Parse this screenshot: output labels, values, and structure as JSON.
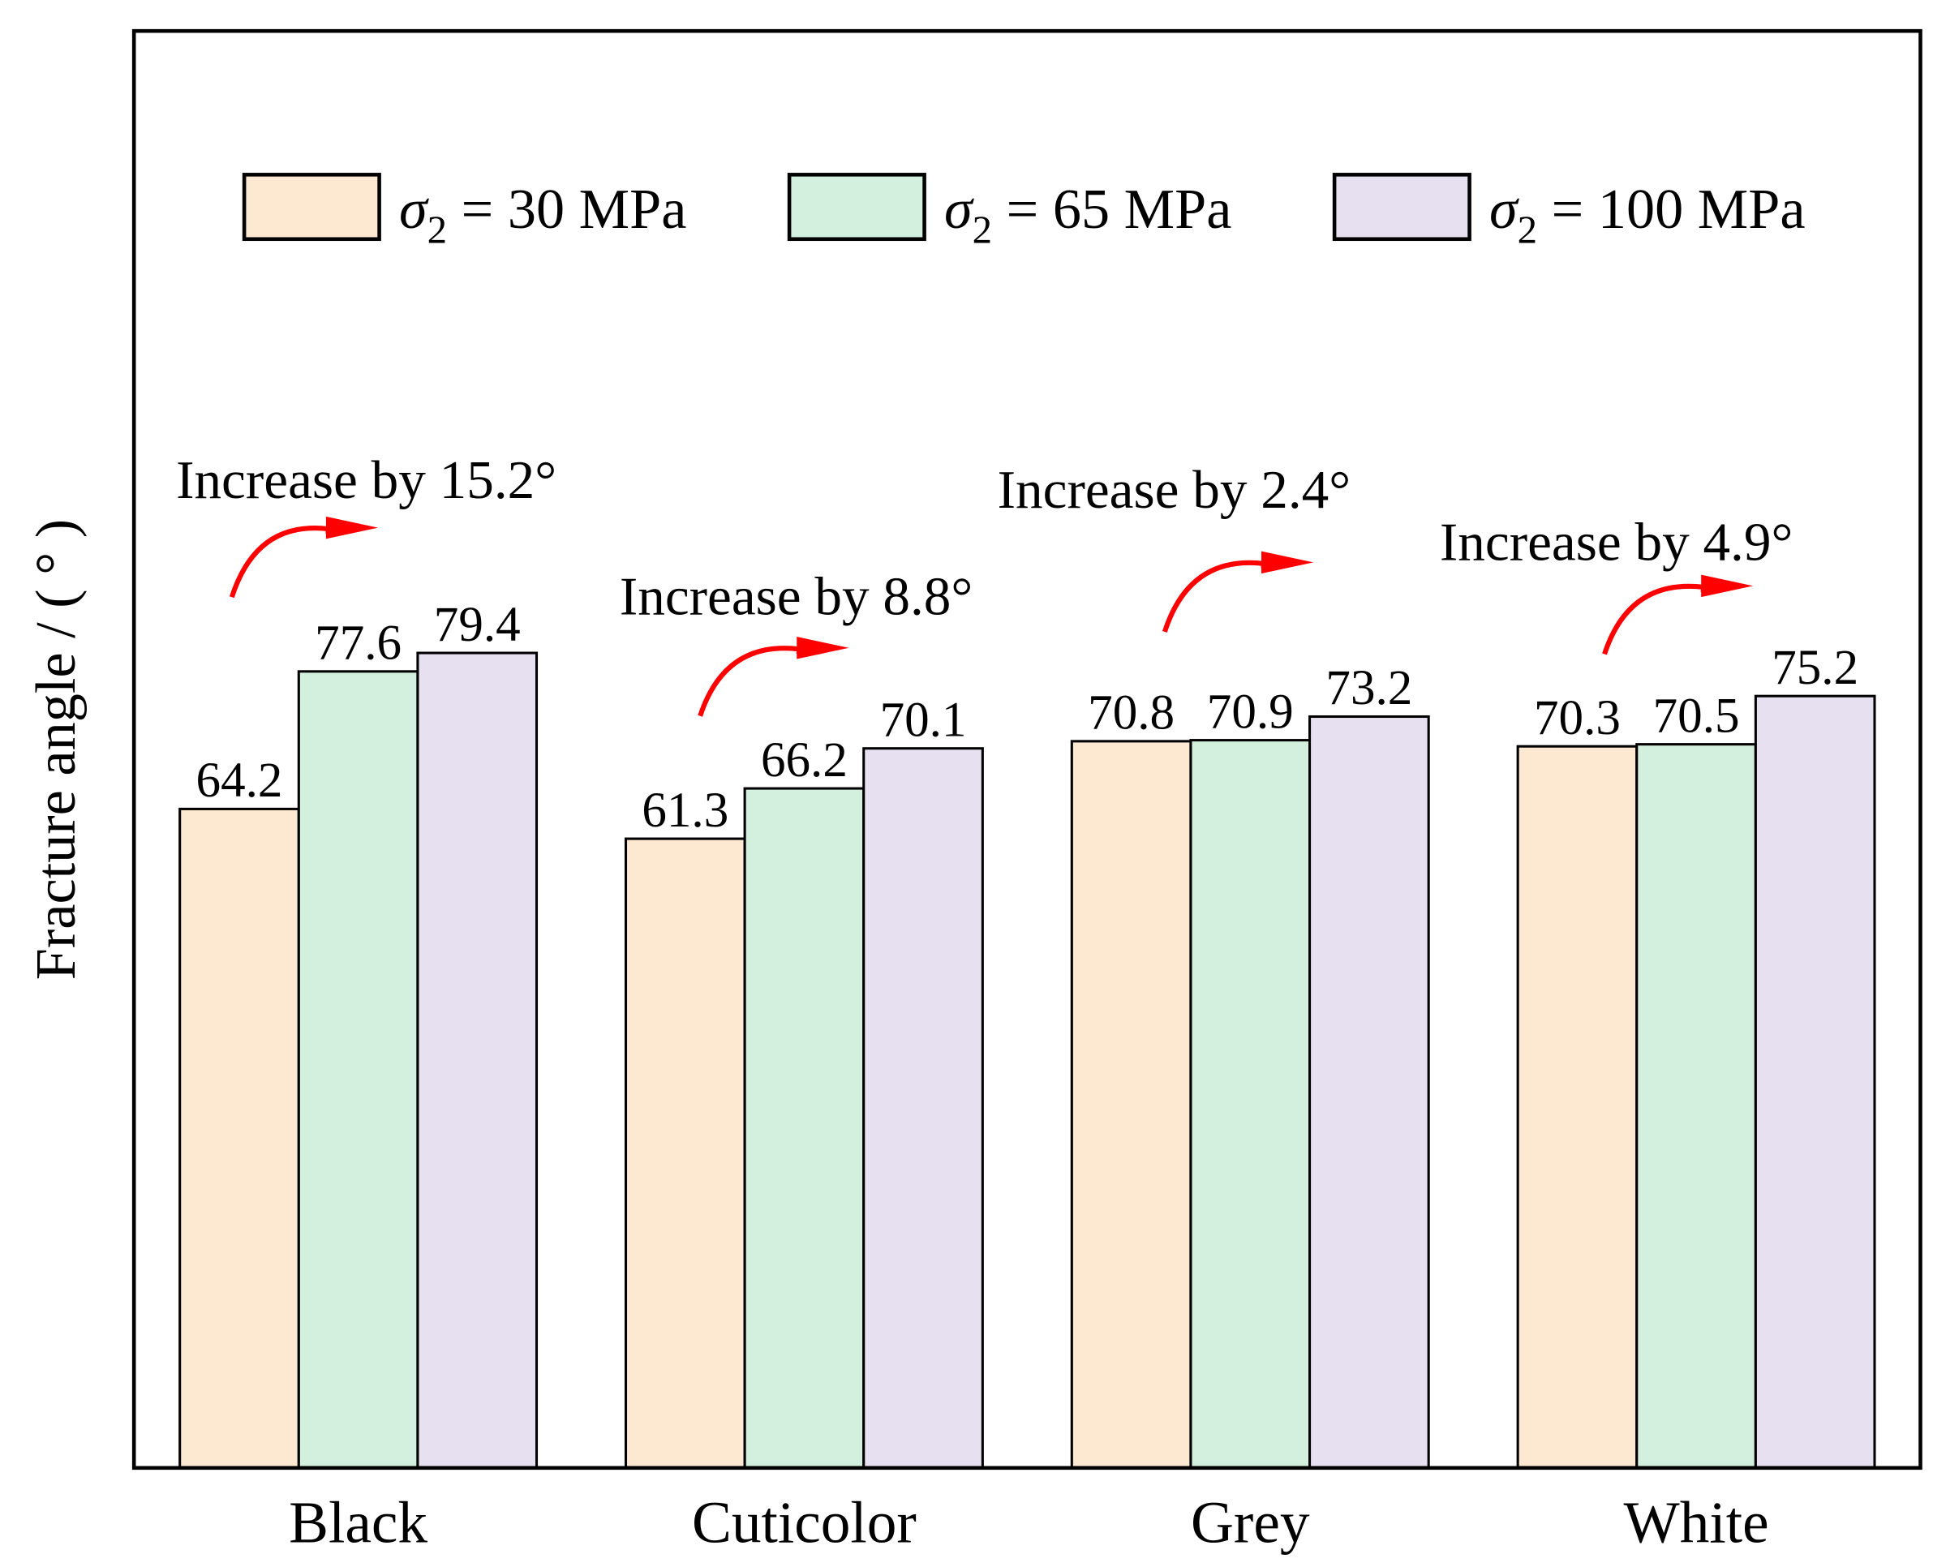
{
  "chart_data": {
    "type": "bar",
    "title": "",
    "xlabel": "",
    "ylabel": "Fracture angle / ( ° )",
    "ylim": [
      0,
      140
    ],
    "grid": false,
    "legend_placement": "top",
    "categories": [
      "Black",
      "Cuticolor",
      "Grey",
      "White"
    ],
    "series": [
      {
        "name": "σ2 = 30 MPa",
        "symbol": "σ",
        "sub": "2",
        "rest": " = 30 MPa",
        "color": "#fde8d2",
        "values": [
          64.2,
          61.3,
          70.8,
          70.3
        ]
      },
      {
        "name": "σ2 = 65 MPa",
        "symbol": "σ",
        "sub": "2",
        "rest": " = 65 MPa",
        "color": "#d3efdd",
        "values": [
          77.6,
          66.2,
          70.9,
          70.5
        ]
      },
      {
        "name": "σ2 = 100 MPa",
        "symbol": "σ",
        "sub": "2",
        "rest": " = 100 MPa",
        "color": "#e7e0f0",
        "values": [
          79.4,
          70.1,
          73.2,
          75.2
        ]
      }
    ],
    "data_labels": [
      [
        "64.2",
        "77.6",
        "79.4"
      ],
      [
        "61.3",
        "66.2",
        "70.1"
      ],
      [
        "70.8",
        "70.9",
        "73.2"
      ],
      [
        "70.3",
        "70.5",
        "75.2"
      ]
    ],
    "annotations": [
      {
        "text": "Increase by 15.2°",
        "arrow_color": "#ff0000"
      },
      {
        "text": "Increase by 8.8°",
        "arrow_color": "#ff0000"
      },
      {
        "text": "Increase by 2.4°",
        "arrow_color": "#ff0000"
      },
      {
        "text": "Increase by 4.9°",
        "arrow_color": "#ff0000"
      }
    ]
  }
}
